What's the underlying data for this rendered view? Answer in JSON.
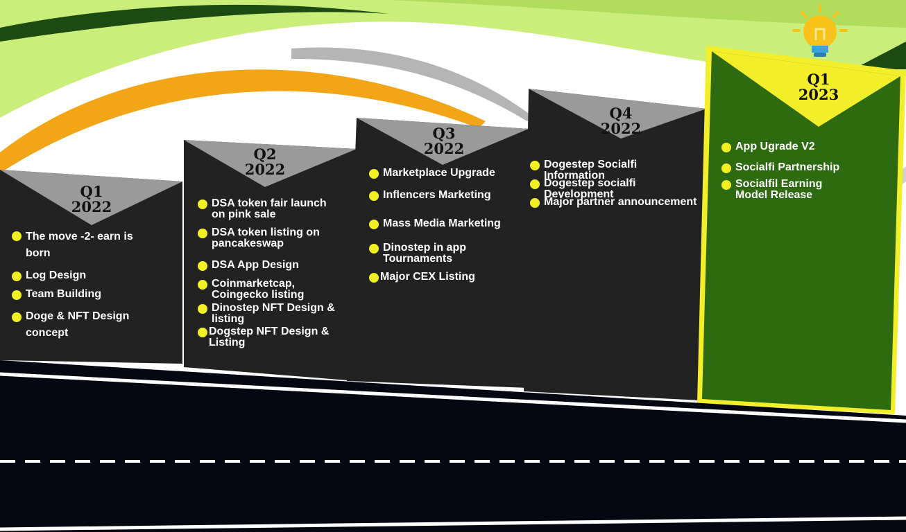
{
  "roadmap": {
    "columns": [
      {
        "quarter": "Q1",
        "year": "2022",
        "highlight": false,
        "items": [
          "The move -2- earn is born",
          "Log Design",
          "Team Building",
          "Doge & NFT Design concept"
        ]
      },
      {
        "quarter": "Q2",
        "year": "2022",
        "highlight": false,
        "items": [
          "DSA token fair launch on pink sale",
          "DSA token listing on pancakeswap",
          "DSA App Design",
          "Coinmarketcap, Coingecko listing",
          "Dinostep NFT Design & listing",
          "Dogstep NFT Design & Listing"
        ]
      },
      {
        "quarter": "Q3",
        "year": "2022",
        "highlight": false,
        "items": [
          "Marketplace Upgrade",
          "Inflencers Marketing",
          "Mass Media Marketing",
          "Dinostep in app Tournaments",
          "Major CEX Listing"
        ]
      },
      {
        "quarter": "Q4",
        "year": "2022",
        "highlight": false,
        "items": [
          "Dogestep Socialfi Information",
          "Dogestep socialfi Development",
          "Major partner announcement"
        ]
      },
      {
        "quarter": "Q1",
        "year": "2023",
        "highlight": true,
        "items": [
          "App Ugrade V2",
          "Socialfi Partnership",
          "Socialfil Earning Model Release"
        ]
      }
    ],
    "colors": {
      "panel": "#222222",
      "panel_header": "#9a9a9a",
      "highlight_panel": "#2d6a10",
      "highlight_header": "#f2ee2a",
      "bullet": "#f2ef22",
      "road": "#050713",
      "green_wave": "#a6d65a",
      "orange_wave": "#f2a516",
      "bulb": "#f9c21a"
    },
    "icons": {
      "decoration": "lightbulb-icon"
    }
  }
}
